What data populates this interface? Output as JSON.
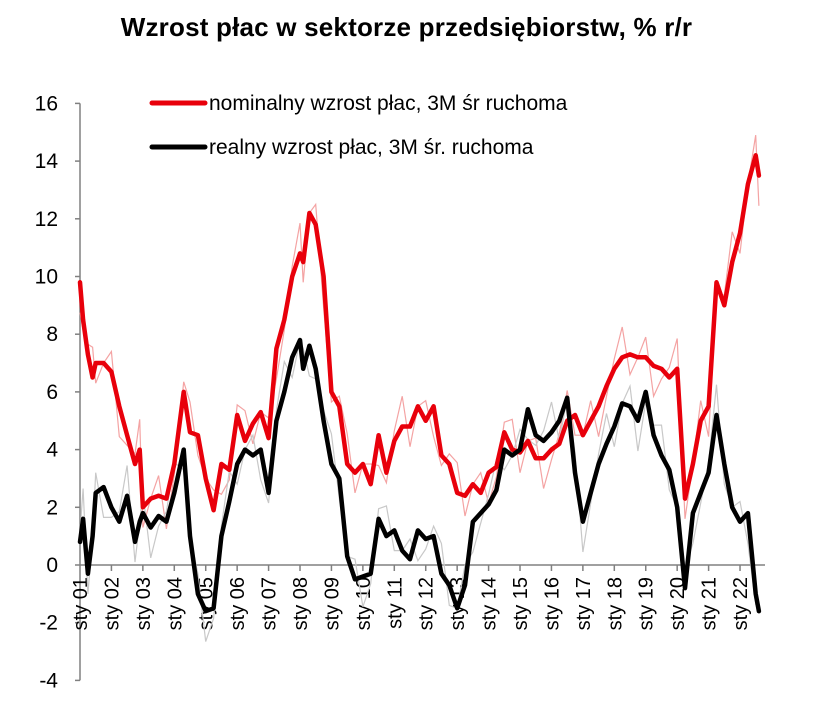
{
  "chart_data": {
    "type": "line",
    "title": "Wzrost płac w sektorze przedsiębiorstw, % r/r",
    "xlabel": "",
    "ylabel": "",
    "ylim": [
      -4,
      16
    ],
    "yticks": [
      -4,
      -2,
      0,
      2,
      4,
      6,
      8,
      10,
      12,
      14,
      16
    ],
    "xticks": [
      "sty 01",
      "sty 02",
      "sty 03",
      "sty 04",
      "sty 05",
      "sty 06",
      "sty 07",
      "sty 08",
      "sty 09",
      "sty 10",
      "sty 11",
      "sty 12",
      "sty 13",
      "sty 14",
      "sty 15",
      "sty 16",
      "sty 17",
      "sty 18",
      "sty 19",
      "sty 20",
      "sty 21",
      "sty 22"
    ],
    "grid": false,
    "legend_position": "top",
    "x": [
      2001.0,
      2001.1,
      2001.25,
      2001.4,
      2001.5,
      2001.75,
      2002.0,
      2002.25,
      2002.5,
      2002.75,
      2002.9,
      2003.0,
      2003.25,
      2003.5,
      2003.75,
      2004.0,
      2004.3,
      2004.5,
      2004.75,
      2005.0,
      2005.25,
      2005.5,
      2005.75,
      2006.0,
      2006.25,
      2006.5,
      2006.75,
      2007.0,
      2007.25,
      2007.5,
      2007.75,
      2008.0,
      2008.1,
      2008.3,
      2008.5,
      2008.75,
      2009.0,
      2009.25,
      2009.5,
      2009.75,
      2010.0,
      2010.25,
      2010.5,
      2010.75,
      2011.0,
      2011.25,
      2011.5,
      2011.75,
      2012.0,
      2012.25,
      2012.5,
      2012.75,
      2013.0,
      2013.25,
      2013.5,
      2013.75,
      2014.0,
      2014.25,
      2014.5,
      2014.75,
      2015.0,
      2015.25,
      2015.5,
      2015.75,
      2016.0,
      2016.25,
      2016.5,
      2016.75,
      2017.0,
      2017.25,
      2017.5,
      2017.75,
      2018.0,
      2018.25,
      2018.5,
      2018.75,
      2019.0,
      2019.25,
      2019.5,
      2019.75,
      2020.0,
      2020.25,
      2020.5,
      2020.75,
      2021.0,
      2021.25,
      2021.5,
      2021.75,
      2022.0,
      2022.25,
      2022.5,
      2022.6
    ],
    "series": [
      {
        "name": "nominalny wzrost płac,  3M śr ruchoma",
        "color": "#e8000b",
        "values": [
          9.8,
          8.5,
          7.3,
          6.5,
          7.0,
          7.0,
          6.7,
          5.5,
          4.5,
          3.5,
          4.0,
          2.0,
          2.3,
          2.4,
          2.3,
          3.5,
          6.0,
          4.6,
          4.5,
          3.0,
          1.9,
          3.5,
          3.3,
          5.2,
          4.3,
          4.9,
          5.3,
          4.4,
          7.5,
          8.5,
          10.0,
          10.8,
          10.5,
          12.2,
          11.8,
          10.0,
          6.0,
          5.5,
          3.5,
          3.2,
          3.5,
          2.8,
          4.5,
          3.2,
          4.3,
          4.8,
          4.8,
          5.5,
          5.0,
          5.5,
          3.8,
          3.5,
          2.5,
          2.4,
          2.8,
          2.5,
          3.2,
          3.4,
          4.6,
          4.0,
          3.9,
          4.3,
          3.7,
          3.7,
          4.0,
          4.2,
          5.0,
          5.2,
          4.5,
          5.0,
          5.5,
          6.2,
          6.8,
          7.2,
          7.3,
          7.2,
          7.2,
          6.9,
          6.8,
          6.5,
          6.8,
          2.3,
          3.5,
          5.0,
          5.5,
          9.8,
          9.0,
          10.5,
          11.5,
          13.2,
          14.2,
          13.5
        ]
      },
      {
        "name": "realny wzrost płac, 3M śr. ruchoma",
        "color": "#000000",
        "values": [
          0.8,
          1.6,
          -0.3,
          1.0,
          2.5,
          2.7,
          2.0,
          1.5,
          2.4,
          0.8,
          1.5,
          1.8,
          1.3,
          1.7,
          1.5,
          2.5,
          4.0,
          1.0,
          -1.0,
          -1.6,
          -1.5,
          1.0,
          2.2,
          3.5,
          4.0,
          3.8,
          4.0,
          2.5,
          5.0,
          6.0,
          7.2,
          7.8,
          6.8,
          7.6,
          6.8,
          5.0,
          3.5,
          3.0,
          0.3,
          -0.5,
          -0.4,
          -0.3,
          1.6,
          1.0,
          1.2,
          0.5,
          0.2,
          1.2,
          0.9,
          1.0,
          -0.3,
          -0.7,
          -1.5,
          -0.7,
          1.5,
          1.8,
          2.1,
          2.6,
          4.0,
          3.8,
          4.0,
          5.4,
          4.5,
          4.3,
          4.6,
          5.0,
          5.8,
          3.2,
          1.5,
          2.5,
          3.5,
          4.2,
          4.8,
          5.6,
          5.5,
          5.0,
          6.0,
          4.5,
          3.8,
          3.3,
          2.0,
          -0.8,
          1.8,
          2.5,
          3.2,
          5.2,
          3.5,
          2.0,
          1.5,
          1.8,
          -1.0,
          -1.6
        ]
      }
    ]
  },
  "legend": {
    "items": [
      {
        "label": "nominalny wzrost płac,  3M śr ruchoma",
        "color": "#e8000b"
      },
      {
        "label": "realny wzrost płac, 3M śr. ruchoma",
        "color": "#000000"
      }
    ]
  }
}
